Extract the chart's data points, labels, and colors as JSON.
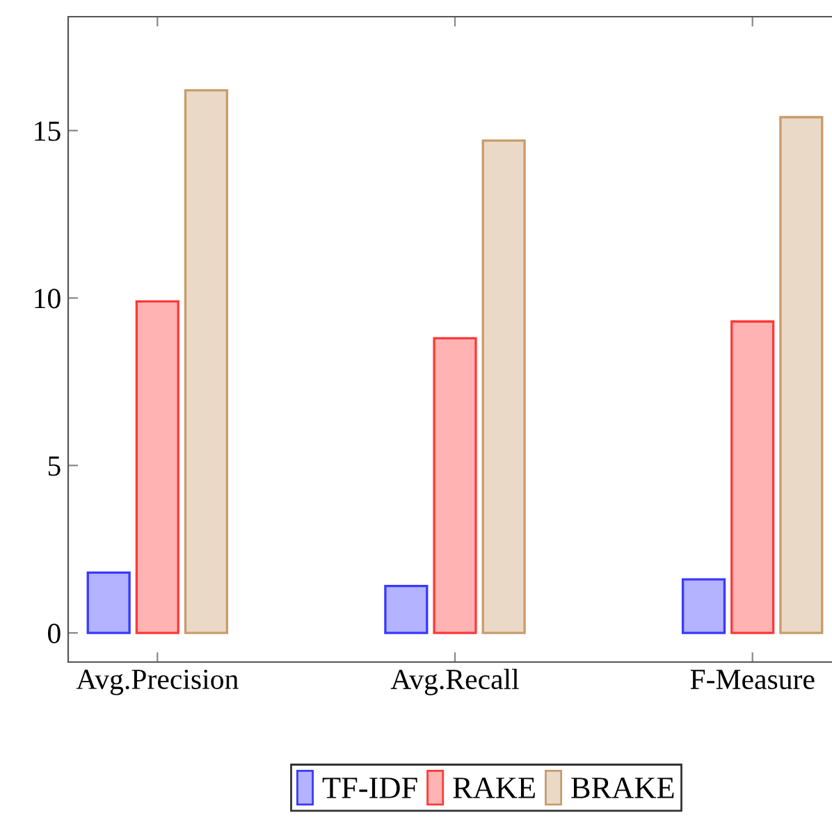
{
  "chart_data": {
    "type": "bar",
    "categories": [
      "Avg.Precision",
      "Avg.Recall",
      "F-Measure"
    ],
    "series": [
      {
        "name": "TF-IDF",
        "color": "#b3b3ff",
        "values": [
          1.8,
          1.4,
          1.6
        ]
      },
      {
        "name": "RAKE",
        "color": "#ffb3b3",
        "values": [
          9.9,
          8.8,
          9.3
        ]
      },
      {
        "name": "BRAKE",
        "color": "#ead9c6",
        "values": [
          16.2,
          14.7,
          15.4
        ]
      }
    ],
    "ylim": [
      -0.87,
      18.4
    ],
    "yticks": [
      0,
      5,
      10,
      15
    ],
    "grid": false,
    "legend": "bottom"
  }
}
